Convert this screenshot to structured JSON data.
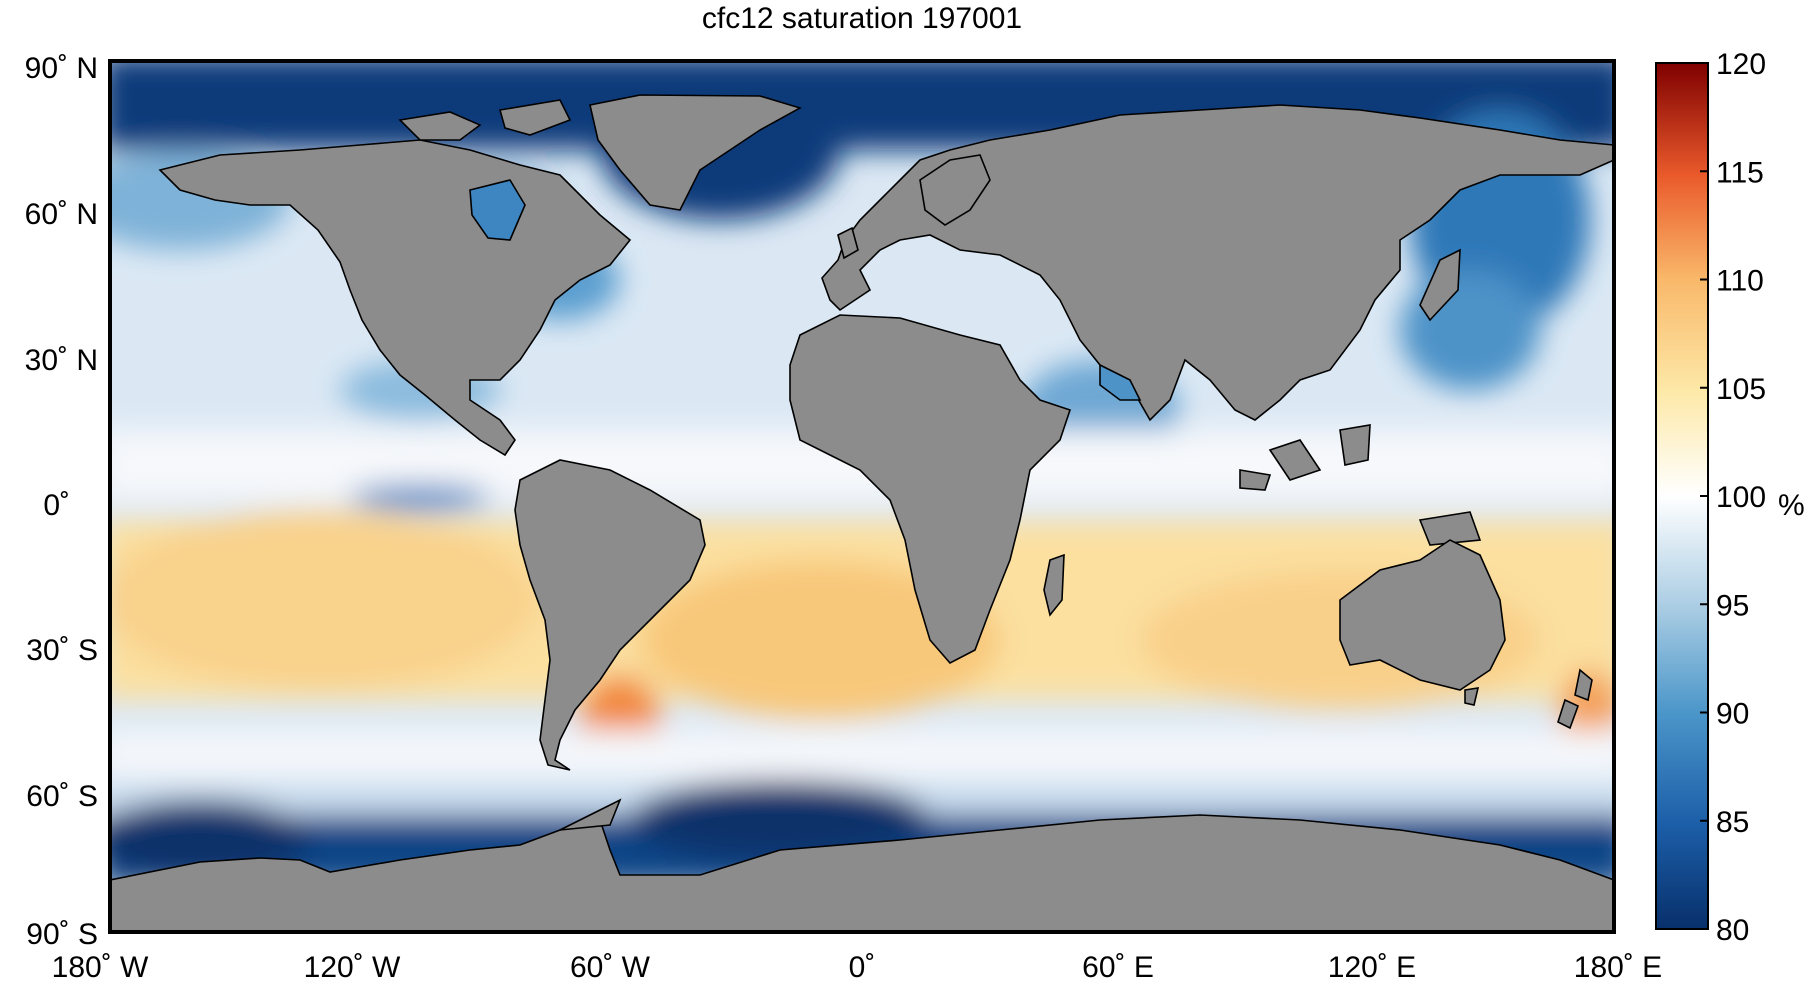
{
  "title": "cfc12 saturation 197001",
  "colorbar": {
    "unit": "%",
    "min": 80,
    "max": 120,
    "ticks": [
      "120",
      "115",
      "110",
      "105",
      "100",
      "95",
      "90",
      "85",
      "80"
    ],
    "colors": {
      "deep_blue": "#08306b",
      "mid_blue": "#2f7ebc",
      "light_blue": "#a9cce3",
      "white": "#ffffff",
      "light_yellow": "#fde9a8",
      "orange": "#f59b46",
      "red": "#d7191c",
      "dark_red": "#7f0000"
    }
  },
  "map": {
    "land_color": "#8c8c8c",
    "longitude_labels": [
      "180˚ W",
      "120˚ W",
      "60˚ W",
      "0˚",
      "60˚ E",
      "120˚ E",
      "180˚ E"
    ],
    "latitude_labels": [
      "90˚ N",
      "60˚ N",
      "30˚ N",
      "0˚",
      "30˚ S",
      "60˚ S",
      "90˚ S"
    ]
  }
}
